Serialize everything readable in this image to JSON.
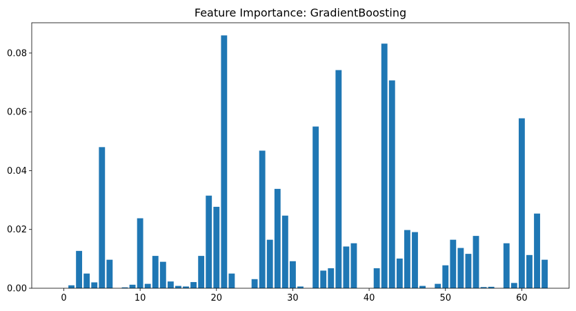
{
  "chart_data": {
    "type": "bar",
    "title": "Feature Importance: GradientBoosting",
    "xlabel": "",
    "ylabel": "",
    "bar_color": "#1f77b4",
    "xlim": [
      -4.2,
      66.2
    ],
    "ylim": [
      0,
      0.0903
    ],
    "xticks": [
      0,
      10,
      20,
      30,
      40,
      50,
      60
    ],
    "yticks": [
      0.0,
      0.02,
      0.04,
      0.06,
      0.08
    ],
    "ytick_labels": [
      "0.00",
      "0.02",
      "0.04",
      "0.06",
      "0.08"
    ],
    "grid": false,
    "x": [
      0,
      1,
      2,
      3,
      4,
      5,
      6,
      7,
      8,
      9,
      10,
      11,
      12,
      13,
      14,
      15,
      16,
      17,
      18,
      19,
      20,
      21,
      22,
      23,
      24,
      25,
      26,
      27,
      28,
      29,
      30,
      31,
      32,
      33,
      34,
      35,
      36,
      37,
      38,
      39,
      40,
      41,
      42,
      43,
      44,
      45,
      46,
      47,
      48,
      49,
      50,
      51,
      52,
      53,
      54,
      55,
      56,
      57,
      58,
      59,
      60,
      61,
      62,
      63
    ],
    "values": [
      0.0,
      0.001,
      0.0127,
      0.005,
      0.002,
      0.048,
      0.0097,
      0.0,
      0.0003,
      0.0012,
      0.0238,
      0.0015,
      0.011,
      0.009,
      0.0023,
      0.0008,
      0.0006,
      0.0021,
      0.011,
      0.0315,
      0.0277,
      0.086,
      0.005,
      0.0,
      0.0,
      0.0031,
      0.0468,
      0.0165,
      0.0338,
      0.0247,
      0.0092,
      0.0006,
      0.0,
      0.055,
      0.006,
      0.0068,
      0.0742,
      0.0142,
      0.0153,
      0.0,
      0.0,
      0.0068,
      0.0832,
      0.0707,
      0.0101,
      0.0198,
      0.0191,
      0.0008,
      0.0,
      0.0015,
      0.0078,
      0.0165,
      0.0137,
      0.0117,
      0.0178,
      0.0004,
      0.0005,
      0.0,
      0.0153,
      0.0018,
      0.0578,
      0.0113,
      0.0254,
      0.0097
    ]
  }
}
